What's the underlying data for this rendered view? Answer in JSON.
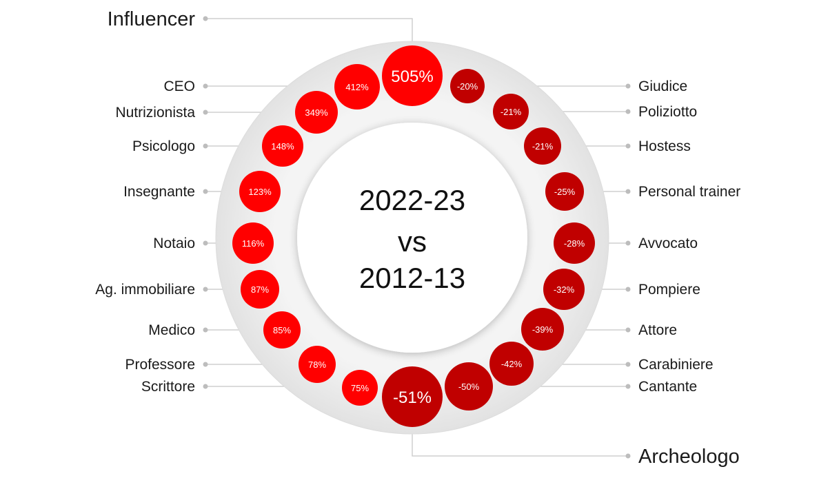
{
  "colors": {
    "positive": "#ff0000",
    "negative": "#c00000",
    "leader": "#cfcfcf",
    "ring_outer": "#eaeaea",
    "ring_inner": "#ffffff"
  },
  "center": {
    "line1": "2022-23",
    "line2": "vs",
    "line3": "2012-13"
  },
  "chart_data": {
    "type": "bubble-ring",
    "title": "",
    "categories": [
      "Influencer",
      "CEO",
      "Nutrizionista",
      "Psicologo",
      "Insegnante",
      "Notaio",
      "Ag. immobiliare",
      "Medico",
      "Professore",
      "Scrittore",
      "Giudice",
      "Poliziotto",
      "Hostess",
      "Personal trainer",
      "Avvocato",
      "Pompiere",
      "Attore",
      "Carabiniere",
      "Cantante",
      "Archeologo"
    ],
    "values": [
      505,
      412,
      349,
      148,
      123,
      116,
      87,
      85,
      78,
      75,
      -20,
      -21,
      -21,
      -25,
      -28,
      -32,
      -39,
      -42,
      -50,
      -51
    ],
    "value_labels": [
      "505%",
      "412%",
      "349%",
      "148%",
      "123%",
      "116%",
      "87%",
      "85%",
      "78%",
      "75%",
      "-20%",
      "-21%",
      "-21%",
      "-25%",
      "-28%",
      "-32%",
      "-39%",
      "-42%",
      "-50%",
      "-51%"
    ],
    "unit": "%"
  }
}
